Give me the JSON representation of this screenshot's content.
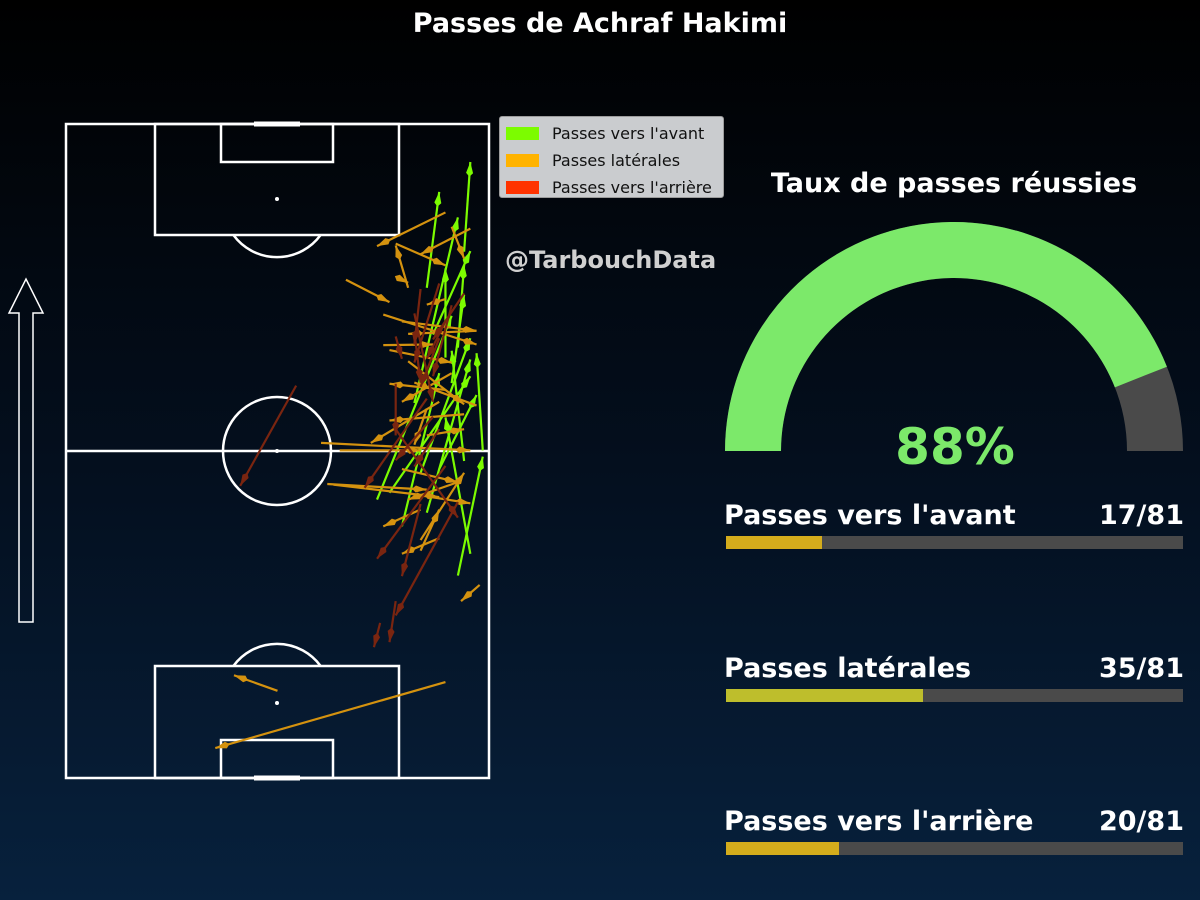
{
  "title": "Passes de Achraf Hakimi",
  "watermark": "@TarbouchData",
  "legend": [
    {
      "label": "Passes vers l'avant",
      "color": "#7cfc00"
    },
    {
      "label": "Passes latérales",
      "color": "#ffb300"
    },
    {
      "label": "Passes vers l'arrière",
      "color": "#ff3300"
    }
  ],
  "colors": {
    "forward": "#7cfc00",
    "lateral": "#d4920f",
    "backward": "#7a2510",
    "gauge_fill": "#7ce96a",
    "gauge_bg": "#4a4a4a",
    "bar_bg": "#4a4a4a"
  },
  "gauge": {
    "title": "Taux de passes réussies",
    "value_label": "88%",
    "value": 88
  },
  "stats": [
    {
      "label": "Passes vers l'avant",
      "value_label": "17/81",
      "count": 17,
      "total": 81,
      "color": "#d4ac1c"
    },
    {
      "label": "Passes latérales",
      "value_label": "35/81",
      "count": 35,
      "total": 81,
      "color": "#bebe2c"
    },
    {
      "label": "Passes vers l'arrière",
      "value_label": "20/81",
      "count": 20,
      "total": 81,
      "color": "#d4ac1c"
    }
  ],
  "chart_data": {
    "type": "pass-map",
    "title": "Passes de Achraf Hakimi",
    "pitch": {
      "length": 105,
      "width": 68,
      "attack_direction": "up"
    },
    "passes": [
      {
        "x1": 32.5,
        "y1": 63.0,
        "x2": 51.6,
        "y2": 67.0,
        "type": "forward"
      },
      {
        "x1": 52.6,
        "y1": 67.0,
        "x2": 68.2,
        "y2": 66.0,
        "type": "forward"
      },
      {
        "x1": 69.1,
        "y1": 63.0,
        "x2": 82.4,
        "y2": 64.0,
        "type": "forward"
      },
      {
        "x1": 84.5,
        "y1": 64.0,
        "x2": 98.9,
        "y2": 65.0,
        "type": "forward"
      },
      {
        "x1": 60.2,
        "y1": 56.0,
        "x2": 90.0,
        "y2": 63.0,
        "type": "forward"
      },
      {
        "x1": 40.4,
        "y1": 54.0,
        "x2": 65.0,
        "y2": 60.0,
        "type": "forward"
      },
      {
        "x1": 44.7,
        "y1": 50.0,
        "x2": 74.2,
        "y2": 62.0,
        "type": "forward"
      },
      {
        "x1": 45.8,
        "y1": 52.0,
        "x2": 64.5,
        "y2": 65.0,
        "type": "forward"
      },
      {
        "x1": 49.0,
        "y1": 57.0,
        "x2": 70.6,
        "y2": 65.0,
        "type": "forward"
      },
      {
        "x1": 67.5,
        "y1": 61.0,
        "x2": 81.8,
        "y2": 61.0,
        "type": "forward"
      },
      {
        "x1": 78.7,
        "y1": 58.0,
        "x2": 94.1,
        "y2": 60.0,
        "type": "forward"
      },
      {
        "x1": 50.9,
        "y1": 64.0,
        "x2": 68.6,
        "y2": 62.0,
        "type": "forward"
      },
      {
        "x1": 42.6,
        "y1": 58.0,
        "x2": 67.2,
        "y2": 65.0,
        "type": "forward"
      },
      {
        "x1": 49.6,
        "y1": 60.0,
        "x2": 61.5,
        "y2": 66.0,
        "type": "forward"
      },
      {
        "x1": 63.4,
        "y1": 62.0,
        "x2": 77.6,
        "y2": 64.0,
        "type": "forward"
      },
      {
        "x1": 71.2,
        "y1": 59.0,
        "x2": 84.6,
        "y2": 65.0,
        "type": "forward"
      },
      {
        "x1": 36.0,
        "y1": 65.0,
        "x2": 57.9,
        "y2": 61.0,
        "type": "forward"
      },
      {
        "x1": 90.8,
        "y1": 61.0,
        "x2": 85.4,
        "y2": 50.0,
        "type": "lateral"
      },
      {
        "x1": 88.2,
        "y1": 65.0,
        "x2": 84.1,
        "y2": 57.0,
        "type": "lateral"
      },
      {
        "x1": 85.8,
        "y1": 53.0,
        "x2": 82.3,
        "y2": 61.0,
        "type": "lateral"
      },
      {
        "x1": 80.0,
        "y1": 45.0,
        "x2": 76.4,
        "y2": 52.0,
        "type": "lateral"
      },
      {
        "x1": 73.3,
        "y1": 54.0,
        "x2": 71.8,
        "y2": 66.0,
        "type": "lateral"
      },
      {
        "x1": 71.8,
        "y1": 66.0,
        "x2": 71.3,
        "y2": 55.0,
        "type": "lateral"
      },
      {
        "x1": 68.7,
        "y1": 52.0,
        "x2": 66.7,
        "y2": 62.0,
        "type": "lateral"
      },
      {
        "x1": 65.0,
        "y1": 62.0,
        "x2": 60.4,
        "y2": 54.0,
        "type": "lateral"
      },
      {
        "x1": 58.4,
        "y1": 64.0,
        "x2": 57.4,
        "y2": 52.0,
        "type": "lateral"
      },
      {
        "x1": 53.8,
        "y1": 41.0,
        "x2": 52.6,
        "y2": 65.0,
        "type": "lateral"
      },
      {
        "x1": 52.6,
        "y1": 44.0,
        "x2": 52.6,
        "y2": 57.0,
        "type": "lateral"
      },
      {
        "x1": 49.6,
        "y1": 54.0,
        "x2": 47.5,
        "y2": 63.0,
        "type": "lateral"
      },
      {
        "x1": 47.5,
        "y1": 63.0,
        "x2": 44.7,
        "y2": 55.0,
        "type": "lateral"
      },
      {
        "x1": 45.7,
        "y1": 55.0,
        "x2": 44.1,
        "y2": 65.0,
        "type": "lateral"
      },
      {
        "x1": 43.1,
        "y1": 57.0,
        "x2": 40.4,
        "y2": 51.0,
        "type": "lateral"
      },
      {
        "x1": 38.5,
        "y1": 60.0,
        "x2": 36.0,
        "y2": 54.0,
        "type": "lateral"
      },
      {
        "x1": 60.4,
        "y1": 60.0,
        "x2": 53.8,
        "y2": 49.0,
        "type": "lateral"
      },
      {
        "x1": 59.8,
        "y1": 66.0,
        "x2": 63.5,
        "y2": 56.0,
        "type": "lateral"
      },
      {
        "x1": 59.3,
        "y1": 58.0,
        "x2": 53.5,
        "y2": 56.0,
        "type": "lateral"
      },
      {
        "x1": 69.5,
        "y1": 51.0,
        "x2": 69.6,
        "y2": 59.0,
        "type": "lateral"
      },
      {
        "x1": 62.3,
        "y1": 61.0,
        "x2": 63.3,
        "y2": 52.0,
        "type": "lateral"
      },
      {
        "x1": 66.9,
        "y1": 55.0,
        "x2": 60.0,
        "y2": 64.0,
        "type": "lateral"
      },
      {
        "x1": 74.4,
        "y1": 51.0,
        "x2": 69.6,
        "y2": 66.0,
        "type": "lateral"
      },
      {
        "x1": 76.9,
        "y1": 61.0,
        "x2": 76.0,
        "y2": 58.0,
        "type": "lateral"
      },
      {
        "x1": 78.7,
        "y1": 55.0,
        "x2": 85.5,
        "y2": 53.0,
        "type": "lateral"
      },
      {
        "x1": 88.5,
        "y1": 62.0,
        "x2": 83.4,
        "y2": 64.0,
        "type": "lateral"
      },
      {
        "x1": 47.2,
        "y1": 42.0,
        "x2": 46.3,
        "y2": 58.0,
        "type": "lateral"
      },
      {
        "x1": 47.1,
        "y1": 43.0,
        "x2": 45.1,
        "y2": 60.0,
        "type": "lateral"
      },
      {
        "x1": 55.0,
        "y1": 58.0,
        "x2": 56.0,
        "y2": 64.0,
        "type": "lateral"
      },
      {
        "x1": 38.2,
        "y1": 57.0,
        "x2": 49.0,
        "y2": 64.0,
        "type": "lateral"
      },
      {
        "x1": 36.5,
        "y1": 57.0,
        "x2": 43.1,
        "y2": 60.0,
        "type": "lateral"
      },
      {
        "x1": 31.0,
        "y1": 66.5,
        "x2": 28.4,
        "y2": 63.5,
        "type": "lateral"
      },
      {
        "x1": 15.4,
        "y1": 61.0,
        "x2": 4.8,
        "y2": 24.0,
        "type": "lateral"
      },
      {
        "x1": 14.0,
        "y1": 34.0,
        "x2": 16.5,
        "y2": 27.0,
        "type": "lateral"
      },
      {
        "x1": 80.0,
        "y1": 54.0,
        "x2": 79.5,
        "y2": 55.0,
        "type": "lateral"
      },
      {
        "x1": 74.6,
        "y1": 56.0,
        "x2": 60.4,
        "y2": 59.0,
        "type": "backward"
      },
      {
        "x1": 70.6,
        "y1": 60.0,
        "x2": 62.8,
        "y2": 57.0,
        "type": "backward"
      },
      {
        "x1": 75.9,
        "y1": 62.0,
        "x2": 64.5,
        "y2": 59.0,
        "type": "backward"
      },
      {
        "x1": 60.9,
        "y1": 58.0,
        "x2": 46.6,
        "y2": 48.0,
        "type": "backward"
      },
      {
        "x1": 56.0,
        "y1": 53.0,
        "x2": 41.8,
        "y2": 63.0,
        "type": "backward"
      },
      {
        "x1": 50.1,
        "y1": 61.0,
        "x2": 35.2,
        "y2": 50.0,
        "type": "backward"
      },
      {
        "x1": 44.3,
        "y1": 63.0,
        "x2": 26.1,
        "y2": 53.0,
        "type": "backward"
      },
      {
        "x1": 44.0,
        "y1": 57.0,
        "x2": 32.4,
        "y2": 54.0,
        "type": "backward"
      },
      {
        "x1": 63.0,
        "y1": 37.0,
        "x2": 46.9,
        "y2": 28.0,
        "type": "backward"
      },
      {
        "x1": 58.0,
        "y1": 59.0,
        "x2": 51.0,
        "y2": 53.0,
        "type": "backward"
      },
      {
        "x1": 56.0,
        "y1": 60.0,
        "x2": 50.0,
        "y2": 56.0,
        "type": "backward"
      },
      {
        "x1": 79.4,
        "y1": 60.0,
        "x2": 66.7,
        "y2": 56.0,
        "type": "backward"
      },
      {
        "x1": 78.5,
        "y1": 57.0,
        "x2": 69.6,
        "y2": 56.0,
        "type": "backward"
      },
      {
        "x1": 77.8,
        "y1": 64.0,
        "x2": 70.4,
        "y2": 59.0,
        "type": "backward"
      },
      {
        "x1": 73.3,
        "y1": 61.0,
        "x2": 67.3,
        "y2": 58.0,
        "type": "backward"
      },
      {
        "x1": 71.6,
        "y1": 56.0,
        "x2": 63.5,
        "y2": 57.0,
        "type": "backward"
      },
      {
        "x1": 63.3,
        "y1": 53.0,
        "x2": 55.0,
        "y2": 53.0,
        "type": "backward"
      },
      {
        "x1": 70.9,
        "y1": 53.0,
        "x2": 67.3,
        "y2": 54.0,
        "type": "backward"
      },
      {
        "x1": 24.9,
        "y1": 50.5,
        "x2": 21.0,
        "y2": 49.5,
        "type": "backward"
      },
      {
        "x1": 28.4,
        "y1": 53.0,
        "x2": 21.8,
        "y2": 52.0,
        "type": "backward"
      }
    ]
  }
}
